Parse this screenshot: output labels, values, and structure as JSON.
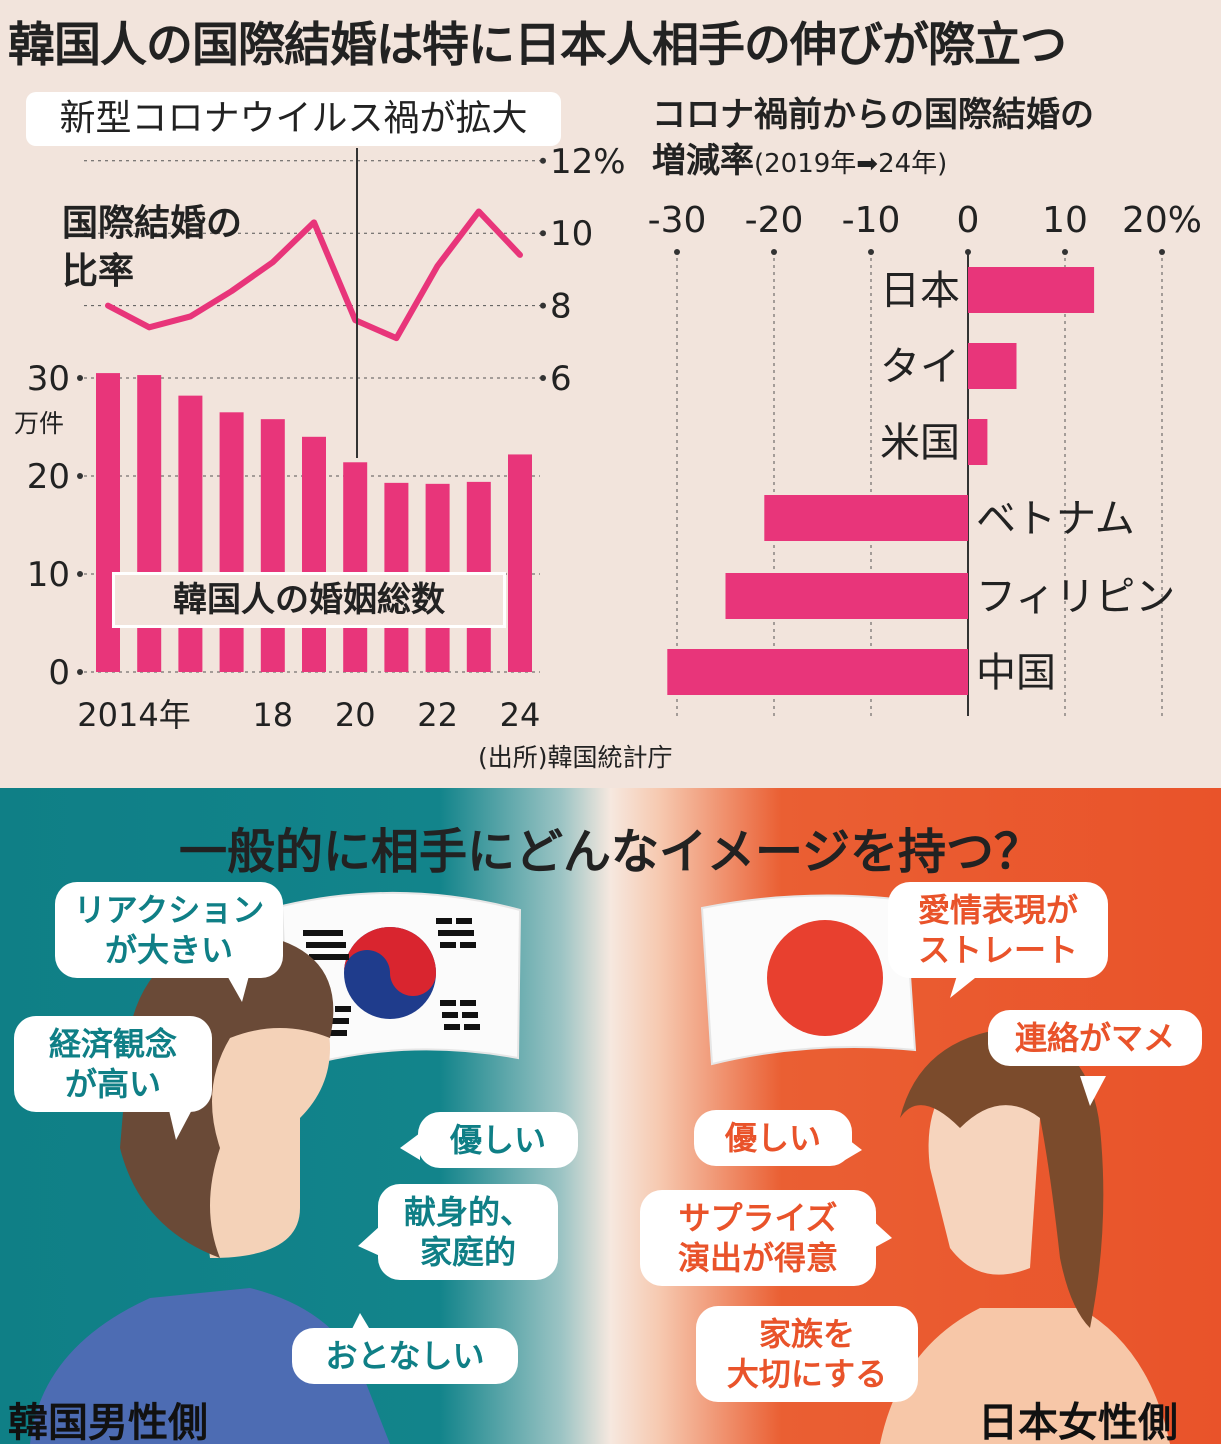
{
  "title": "韓国人の国際結婚は特に日本人相手の伸びが際立つ",
  "left_chart": {
    "covid_label": "新型コロナウイルス禍が拡大",
    "ratio_label_line1": "国際結婚の",
    "ratio_label_line2": "比率",
    "total_label": "韓国人の婚姻総数",
    "left_unit": "万件",
    "source": "(出所)韓国統計庁"
  },
  "right_chart": {
    "title_line1": "コロナ禍前からの国際結婚の",
    "title_line2": "増減率",
    "title_period": "(2019年➡24年)"
  },
  "chart_data": [
    {
      "type": "bar",
      "name": "韓国人の婚姻総数",
      "x": [
        2014,
        2015,
        2016,
        2017,
        2018,
        2019,
        2020,
        2021,
        2022,
        2023,
        2024
      ],
      "x_tick_labels": [
        "2014年",
        "",
        "",
        "",
        "18",
        "",
        "20",
        "",
        "22",
        "",
        "24"
      ],
      "values": [
        30.5,
        30.3,
        28.2,
        26.5,
        25.8,
        24.0,
        21.4,
        19.3,
        19.2,
        19.4,
        22.2
      ],
      "ylim": [
        0,
        30
      ],
      "y_ticks": [
        0,
        10,
        20,
        30
      ],
      "ylabel": "万件"
    },
    {
      "type": "line",
      "name": "国際結婚の比率",
      "x": [
        2014,
        2015,
        2016,
        2017,
        2018,
        2019,
        2020,
        2021,
        2022,
        2023,
        2024
      ],
      "values": [
        8.0,
        7.4,
        7.7,
        8.4,
        9.2,
        10.3,
        7.6,
        7.1,
        9.1,
        10.6,
        9.4
      ],
      "ylim": [
        6,
        12
      ],
      "y_ticks": [
        6,
        8,
        10,
        12
      ],
      "y_tick_labels": [
        "6",
        "8",
        "10",
        "12%"
      ]
    },
    {
      "type": "bar",
      "orientation": "horizontal",
      "categories": [
        "日本",
        "タイ",
        "米国",
        "ベトナム",
        "フィリピン",
        "中国"
      ],
      "values": [
        13,
        5,
        2,
        -21,
        -25,
        -31
      ],
      "xlim": [
        -30,
        20
      ],
      "x_ticks": [
        -30,
        -20,
        -10,
        0,
        10,
        20
      ],
      "x_tick_labels": [
        "-30",
        "-20",
        "-10",
        "0",
        "10",
        "20%"
      ]
    }
  ],
  "image_section": {
    "question": "一般的に相手にどんなイメージを持つ？",
    "korean_side": {
      "label": "韓国男性側",
      "bubbles": [
        [
          "リアクション",
          "が大きい"
        ],
        [
          "経済観念",
          "が高い"
        ],
        [
          "優しい"
        ],
        [
          "献身的、",
          "家庭的"
        ],
        [
          "おとなしい"
        ]
      ]
    },
    "japanese_side": {
      "label": "日本女性側",
      "bubbles": [
        [
          "愛情表現が",
          "ストレート"
        ],
        [
          "連絡がマメ"
        ],
        [
          "優しい"
        ],
        [
          "サプライズ",
          "演出が得意"
        ],
        [
          "家族を",
          "大切にする"
        ]
      ]
    }
  },
  "colors": {
    "accent": "#e8357a",
    "teal": "#0f7f86",
    "orange": "#e9532a",
    "background": "#f2e4dc"
  }
}
